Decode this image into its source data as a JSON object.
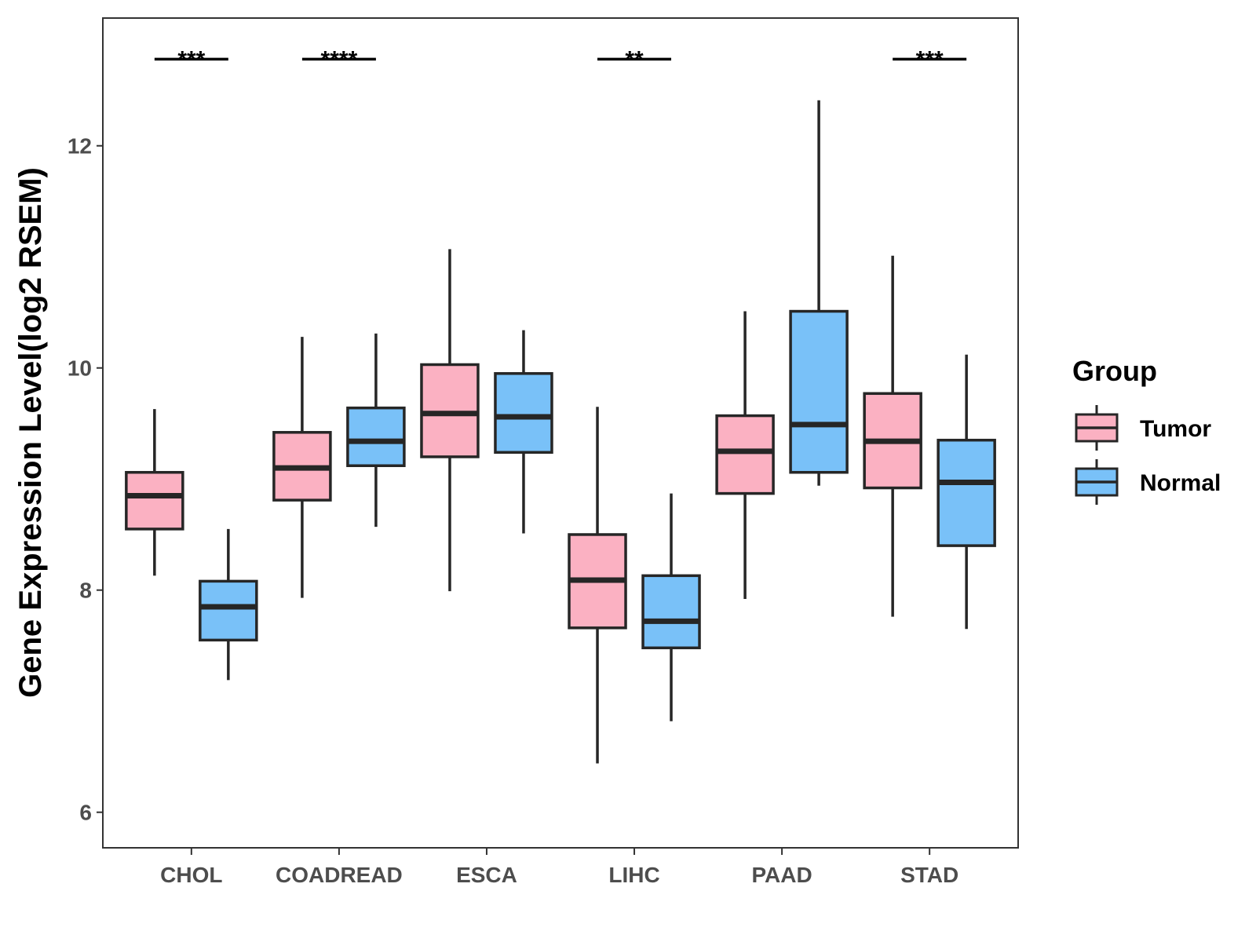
{
  "chart_data": {
    "type": "boxplot",
    "title": "",
    "xlabel": "",
    "ylabel": "Gene Expression Level(log2 RSEM)",
    "ylim": [
      5.68,
      13.15
    ],
    "yticks": [
      6,
      8,
      10,
      12
    ],
    "ytick_labels": [
      "6",
      "8",
      "10",
      "12"
    ],
    "grid": false,
    "legend_position": "right",
    "legend_title": "Group",
    "categories": [
      "CHOL",
      "COADREAD",
      "ESCA",
      "LIHC",
      "PAAD",
      "STAD"
    ],
    "series": [
      {
        "name": "Tumor",
        "color": "#FBB1C2",
        "boxes": [
          {
            "min": 8.13,
            "q1": 8.55,
            "median": 8.85,
            "q3": 9.06,
            "max": 9.63
          },
          {
            "min": 7.93,
            "q1": 8.81,
            "median": 9.1,
            "q3": 9.42,
            "max": 10.28
          },
          {
            "min": 7.99,
            "q1": 9.2,
            "median": 9.59,
            "q3": 10.03,
            "max": 11.07
          },
          {
            "min": 6.44,
            "q1": 7.66,
            "median": 8.09,
            "q3": 8.5,
            "max": 9.65
          },
          {
            "min": 7.92,
            "q1": 8.87,
            "median": 9.25,
            "q3": 9.57,
            "max": 10.51
          },
          {
            "min": 7.76,
            "q1": 8.92,
            "median": 9.34,
            "q3": 9.77,
            "max": 11.01
          }
        ]
      },
      {
        "name": "Normal",
        "color": "#79C1F8",
        "boxes": [
          {
            "min": 7.19,
            "q1": 7.55,
            "median": 7.85,
            "q3": 8.08,
            "max": 8.55
          },
          {
            "min": 8.57,
            "q1": 9.12,
            "median": 9.34,
            "q3": 9.64,
            "max": 10.31
          },
          {
            "min": 8.51,
            "q1": 9.24,
            "median": 9.56,
            "q3": 9.95,
            "max": 10.34
          },
          {
            "min": 6.82,
            "q1": 7.48,
            "median": 7.72,
            "q3": 8.13,
            "max": 8.87
          },
          {
            "min": 8.94,
            "q1": 9.06,
            "median": 9.49,
            "q3": 10.51,
            "max": 12.41
          },
          {
            "min": 7.65,
            "q1": 8.4,
            "median": 8.97,
            "q3": 9.35,
            "max": 10.12
          }
        ]
      }
    ],
    "significance": [
      {
        "category": "CHOL",
        "label": "***"
      },
      {
        "category": "COADREAD",
        "label": "****"
      },
      {
        "category": "LIHC",
        "label": "**"
      },
      {
        "category": "STAD",
        "label": "***"
      }
    ],
    "significance_bar_y": 12.78
  }
}
